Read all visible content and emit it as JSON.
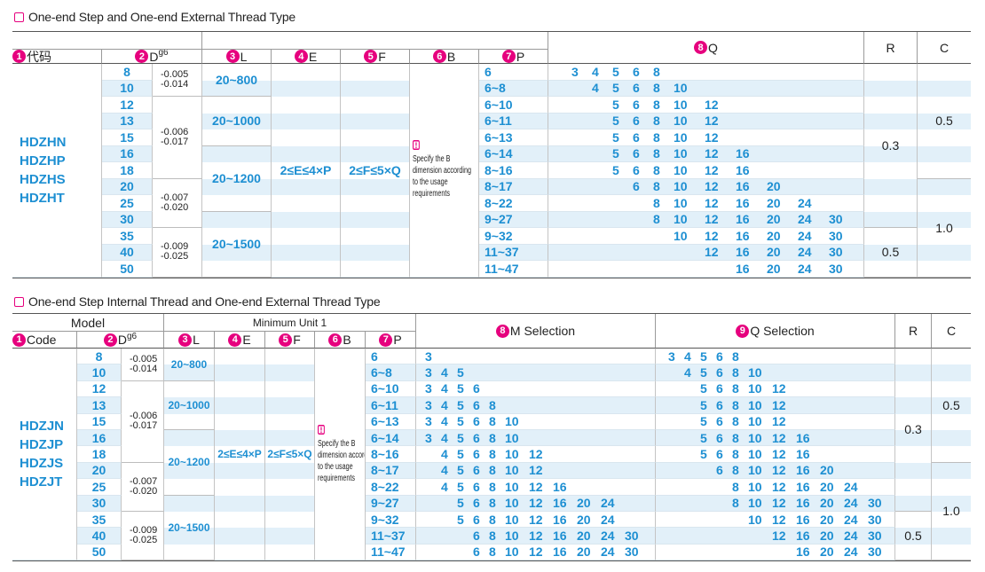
{
  "tables": [
    {
      "title": "One-end Step and One-end External Thread Type",
      "columns": [
        {
          "num": "1",
          "label": "代码"
        },
        {
          "num": "2",
          "label": "D",
          "sup": "g6"
        },
        {
          "num": "3",
          "label": "L"
        },
        {
          "num": "4",
          "label": "E"
        },
        {
          "num": "5",
          "label": "F"
        },
        {
          "num": "6",
          "label": "B"
        },
        {
          "num": "7",
          "label": "P"
        }
      ],
      "selection_columns": [
        {
          "num": "8",
          "label": "Q"
        }
      ],
      "r_header": "R",
      "c_header": "C",
      "codes": [
        "HDZHN",
        "HDZHP",
        "HDZHS",
        "HDZHT"
      ],
      "d": [
        8,
        10,
        12,
        13,
        15,
        16,
        18,
        20,
        25,
        30,
        35,
        40,
        50
      ],
      "tolerances": [
        [
          "-0.005",
          "-0.014"
        ],
        [
          "-0.006",
          "-0.017"
        ],
        [
          "-0.007",
          "-0.020"
        ],
        [
          "-0.009",
          "-0.025"
        ]
      ],
      "l_ranges": [
        "20~800",
        "20~1000",
        "20~1200",
        "20~1500"
      ],
      "e": "2≤E≤4×P",
      "f": "2≤F≤5×Q",
      "b_note": "Specify the B dimension according to the usage requirements",
      "p": [
        "6",
        "6~8",
        "6~10",
        "6~11",
        "6~13",
        "6~14",
        "8~16",
        "8~17",
        "8~22",
        "9~27",
        "9~32",
        "11~37",
        "11~47"
      ],
      "selections": [
        [
          [
            3,
            4,
            5,
            6,
            8
          ],
          [
            4,
            5,
            6,
            8,
            10
          ],
          [
            5,
            6,
            8,
            10,
            12
          ],
          [
            5,
            6,
            8,
            10,
            12
          ],
          [
            5,
            6,
            8,
            10,
            12
          ],
          [
            5,
            6,
            8,
            10,
            12,
            16
          ],
          [
            5,
            6,
            8,
            10,
            12,
            16
          ],
          [
            6,
            8,
            10,
            12,
            16,
            20
          ],
          [
            8,
            10,
            12,
            16,
            20,
            24
          ],
          [
            8,
            10,
            12,
            16,
            20,
            24,
            30
          ],
          [
            10,
            12,
            16,
            20,
            24,
            30
          ],
          [
            12,
            16,
            20,
            24,
            30
          ],
          [
            16,
            20,
            24,
            30
          ]
        ]
      ],
      "r": [
        "0.3",
        "0.5"
      ],
      "c": [
        "0.5",
        "1.0"
      ]
    },
    {
      "title": "One-end Step Internal Thread and One-end External Thread Type",
      "group_headers": [
        "Model",
        "Minimum Unit 1"
      ],
      "columns": [
        {
          "num": "1",
          "label": "Code"
        },
        {
          "num": "2",
          "label": "D",
          "sup": "g6"
        },
        {
          "num": "3",
          "label": "L"
        },
        {
          "num": "4",
          "label": "E"
        },
        {
          "num": "5",
          "label": "F"
        },
        {
          "num": "6",
          "label": "B"
        },
        {
          "num": "7",
          "label": "P"
        }
      ],
      "selection_columns": [
        {
          "num": "8",
          "label": "M  Selection"
        },
        {
          "num": "9",
          "label": "Q  Selection"
        }
      ],
      "r_header": "R",
      "c_header": "C",
      "codes": [
        "HDZJN",
        "HDZJP",
        "HDZJS",
        "HDZJT"
      ],
      "d": [
        8,
        10,
        12,
        13,
        15,
        16,
        18,
        20,
        25,
        30,
        35,
        40,
        50
      ],
      "tolerances": [
        [
          "-0.005",
          "-0.014"
        ],
        [
          "-0.006",
          "-0.017"
        ],
        [
          "-0.007",
          "-0.020"
        ],
        [
          "-0.009",
          "-0.025"
        ]
      ],
      "l_ranges": [
        "20~800",
        "20~1000",
        "20~1200",
        "20~1500"
      ],
      "e": "2≤E≤4×P",
      "f": "2≤F≤5×Q",
      "b_note": "Specify the B dimension according to the usage requirements",
      "p": [
        "6",
        "6~8",
        "6~10",
        "6~11",
        "6~13",
        "6~14",
        "8~16",
        "8~17",
        "8~22",
        "9~27",
        "9~32",
        "11~37",
        "11~47"
      ],
      "selections": [
        [
          [
            3
          ],
          [
            3,
            4,
            5
          ],
          [
            3,
            4,
            5,
            6
          ],
          [
            3,
            4,
            5,
            6,
            8
          ],
          [
            3,
            4,
            5,
            6,
            8,
            10
          ],
          [
            3,
            4,
            5,
            6,
            8,
            10
          ],
          [
            4,
            5,
            6,
            8,
            10,
            12
          ],
          [
            4,
            5,
            6,
            8,
            10,
            12
          ],
          [
            4,
            5,
            6,
            8,
            10,
            12,
            16
          ],
          [
            5,
            6,
            8,
            10,
            12,
            16,
            20,
            24
          ],
          [
            5,
            6,
            8,
            10,
            12,
            16,
            20,
            24
          ],
          [
            6,
            8,
            10,
            12,
            16,
            20,
            24,
            30
          ],
          [
            6,
            8,
            10,
            12,
            16,
            20,
            24,
            30
          ]
        ],
        [
          [
            3,
            4,
            5,
            6,
            8
          ],
          [
            4,
            5,
            6,
            8,
            10
          ],
          [
            5,
            6,
            8,
            10,
            12
          ],
          [
            5,
            6,
            8,
            10,
            12
          ],
          [
            5,
            6,
            8,
            10,
            12
          ],
          [
            5,
            6,
            8,
            10,
            12,
            16
          ],
          [
            5,
            6,
            8,
            10,
            12,
            16
          ],
          [
            6,
            8,
            10,
            12,
            16,
            20
          ],
          [
            8,
            10,
            12,
            16,
            20,
            24
          ],
          [
            8,
            10,
            12,
            16,
            20,
            24,
            30
          ],
          [
            10,
            12,
            16,
            20,
            24,
            30
          ],
          [
            12,
            16,
            20,
            24,
            30
          ],
          [
            16,
            20,
            24,
            30
          ]
        ]
      ],
      "r": [
        "0.3",
        "0.5"
      ],
      "c": [
        "0.5",
        "1.0"
      ]
    }
  ]
}
